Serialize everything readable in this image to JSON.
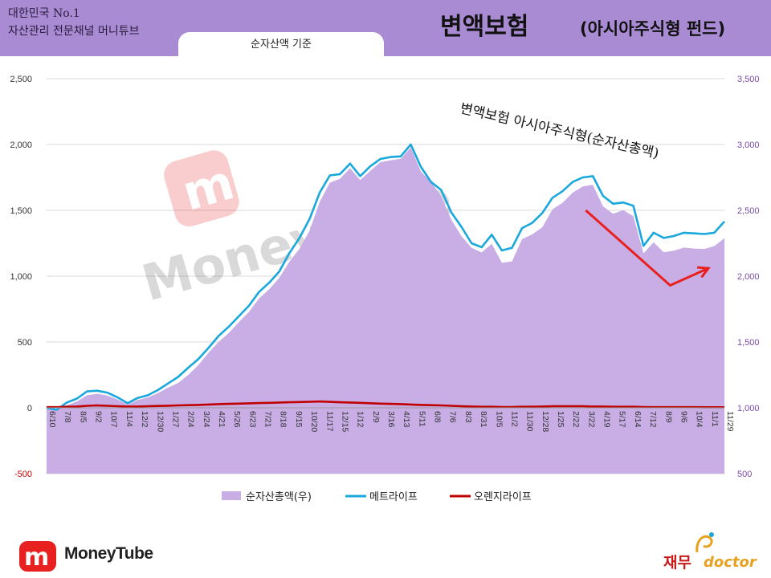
{
  "header": {
    "brand_line1": "대한민국 No.1",
    "brand_line2": "자산관리 전문채널 머니튜브",
    "title_main": "변액보험",
    "title_sub": "(아시아주식형 펀드)",
    "basis": "순자산액 기준"
  },
  "footer": {
    "brand": "MoneyTube",
    "partner_kr": "재무",
    "partner_en": "doctor"
  },
  "watermark": "MoneyTube",
  "colors": {
    "header_bg": "#a88bd3",
    "area_fill": "#c9aee6",
    "metlife": "#1aa7dc",
    "orange": "#c00000",
    "arrow": "#e8201f"
  },
  "chart_data": {
    "type": "line",
    "title": "변액보험 아시아주식형(순자산총액)",
    "left_axis": {
      "ylim": [
        -500,
        2500
      ],
      "ticks": [
        "-500",
        "0",
        "500",
        "1,000",
        "1,500",
        "2,000",
        "2,500"
      ]
    },
    "right_axis": {
      "ylim": [
        500,
        3500
      ],
      "ticks": [
        "500",
        "1,000",
        "1,500",
        "2,000",
        "2,500",
        "3,000",
        "3,500"
      ]
    },
    "x_tick_labels": [
      "6/10",
      "7/8",
      "8/5",
      "9/2",
      "10/7",
      "11/4",
      "12/2",
      "12/30",
      "1/27",
      "2/24",
      "3/24",
      "4/21",
      "5/26",
      "6/23",
      "7/21",
      "8/18",
      "9/15",
      "10/20",
      "11/17",
      "12/15",
      "1/12",
      "2/9",
      "3/16",
      "4/13",
      "5/11",
      "6/8",
      "7/6",
      "8/3",
      "8/31",
      "10/5",
      "11/2",
      "11/30",
      "12/28",
      "1/25",
      "2/22",
      "3/22",
      "4/19",
      "5/17",
      "6/14",
      "7/12",
      "8/9",
      "9/6",
      "10/4",
      "11/1",
      "11/29"
    ],
    "legend_position": "bottom",
    "grid": "horizontal",
    "series": [
      {
        "name": "순자산총액(우)",
        "axis": "right",
        "style": "area",
        "values": [
          998,
          983,
          1020,
          1048,
          1095,
          1107,
          1093,
          1064,
          1025,
          1060,
          1079,
          1111,
          1153,
          1189,
          1250,
          1325,
          1418,
          1500,
          1567,
          1650,
          1728,
          1831,
          1900,
          1987,
          2110,
          2208,
          2346,
          2565,
          2710,
          2739,
          2820,
          2729,
          2800,
          2866,
          2880,
          2892,
          2978,
          2795,
          2718,
          2605,
          2430,
          2305,
          2216,
          2180,
          2246,
          2101,
          2112,
          2282,
          2317,
          2372,
          2508,
          2557,
          2634,
          2681,
          2693,
          2531,
          2474,
          2502,
          2457,
          2173,
          2258,
          2182,
          2194,
          2217,
          2210,
          2207,
          2228,
          2289
        ]
      },
      {
        "name": "메트라이프",
        "axis": "left",
        "values": [
          0,
          -15,
          40,
          70,
          125,
          130,
          115,
          80,
          35,
          75,
          95,
          135,
          185,
          235,
          305,
          370,
          455,
          545,
          615,
          695,
          775,
          880,
          950,
          1035,
          1175,
          1290,
          1435,
          1635,
          1765,
          1775,
          1855,
          1760,
          1835,
          1890,
          1905,
          1910,
          2000,
          1830,
          1715,
          1655,
          1485,
          1375,
          1250,
          1220,
          1315,
          1195,
          1215,
          1365,
          1405,
          1480,
          1595,
          1645,
          1715,
          1750,
          1760,
          1610,
          1550,
          1560,
          1535,
          1230,
          1330,
          1290,
          1305,
          1330,
          1325,
          1320,
          1330,
          1415
        ]
      },
      {
        "name": "오렌지라이프",
        "axis": "left",
        "values": [
          5,
          5,
          8,
          10,
          15,
          18,
          15,
          12,
          10,
          10,
          12,
          14,
          16,
          18,
          20,
          22,
          25,
          28,
          30,
          32,
          34,
          36,
          38,
          40,
          42,
          44,
          46,
          48,
          45,
          42,
          40,
          38,
          35,
          32,
          30,
          28,
          25,
          22,
          20,
          18,
          15,
          12,
          10,
          8,
          8,
          6,
          6,
          8,
          8,
          10,
          12,
          12,
          12,
          12,
          10,
          10,
          8,
          8,
          8,
          6,
          5,
          5,
          5,
          5,
          5,
          4,
          4,
          4
        ]
      }
    ],
    "annotation": {
      "kind": "arrow",
      "from": {
        "x_tick": "3/22",
        "y_left": 1500
      },
      "via": {
        "x_tick": "9/6",
        "y_left": 930
      },
      "to": {
        "x_tick": "11/29",
        "y_left": 1060
      }
    }
  }
}
